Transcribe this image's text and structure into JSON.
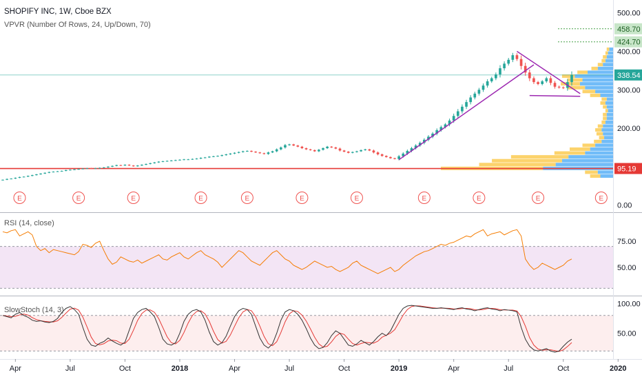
{
  "legend": {
    "main": "SHOPIFY INC, 1W, Cboe BZX",
    "vpvr": "VPVR (Number Of Rows, 24, Up/Down, 70)",
    "rsi": "RSI (14, close)",
    "stoch": "SlowStoch (14, 3)"
  },
  "colors": {
    "up": "#26a69a",
    "down": "#ef5350",
    "trendline": "#9c27b0",
    "support": "#e53935",
    "rsi_line": "#f57c00",
    "rsi_band": "#f3e5f5",
    "stoch_k": "#333333",
    "stoch_d": "#e53935",
    "vp_up": "#42a5f5",
    "vp_down": "#fbc02d"
  },
  "chart_data": [
    {
      "type": "candlestick",
      "title": "SHOPIFY INC, 1W, Cboe BZX",
      "ylim": [
        -15,
        530
      ],
      "y_ticks": [
        "500.00",
        "400.00",
        "300.00",
        "200.00",
        "0.00"
      ],
      "y_tick_values": [
        500,
        400,
        300,
        200,
        0
      ],
      "x_ticks": [
        "Apr",
        "Jul",
        "Oct",
        "2018",
        "Apr",
        "Jul",
        "Oct",
        "2019",
        "Apr",
        "Jul",
        "Oct",
        "2020"
      ],
      "x_tick_weeks": [
        3,
        16,
        29,
        42,
        55,
        68,
        81,
        94,
        107,
        120,
        133,
        146
      ],
      "weekly_close": [
        66,
        68,
        69,
        71,
        73,
        74,
        76,
        78,
        80,
        82,
        84,
        86,
        87,
        88,
        89,
        91,
        92,
        93,
        94,
        95,
        96,
        95,
        96,
        97,
        98,
        100,
        102,
        104,
        103,
        105,
        103,
        101,
        103,
        105,
        107,
        109,
        111,
        113,
        114,
        115,
        116,
        117,
        118,
        119,
        119,
        120,
        121,
        123,
        124,
        126,
        127,
        128,
        130,
        132,
        134,
        136,
        138,
        140,
        141,
        139,
        137,
        135,
        133,
        137,
        140,
        145,
        150,
        156,
        158,
        155,
        152,
        148,
        145,
        143,
        140,
        144,
        148,
        152,
        150,
        147,
        142,
        139,
        136,
        138,
        140,
        143,
        145,
        142,
        137,
        132,
        128,
        125,
        122,
        120,
        127,
        134,
        141,
        148,
        155,
        162,
        170,
        178,
        186,
        195,
        203,
        210,
        220,
        232,
        244,
        256,
        268,
        280,
        290,
        300,
        311,
        322,
        330,
        340,
        356,
        368,
        378,
        390,
        380,
        362,
        345,
        330,
        320,
        315,
        322,
        330,
        318,
        308,
        306,
        305,
        320,
        338.54
      ],
      "annotations": {
        "last_price": "338.54",
        "price_labels": [
          "458.70",
          "424.70",
          "95.19"
        ],
        "price_label_values": [
          458.7,
          424.7,
          95.19
        ],
        "support_line": 95.19,
        "earnings_marker": "E",
        "earnings_weeks": [
          4,
          18,
          31,
          47,
          58,
          71,
          84,
          100,
          113,
          127,
          142,
          155
        ]
      },
      "volume_profile": {
        "price_levels": [
          75,
          85,
          95,
          105,
          115,
          125,
          135,
          145,
          155,
          165,
          175,
          185,
          195,
          205,
          215,
          225,
          235,
          245,
          255,
          265,
          275,
          285,
          295,
          305,
          315,
          325,
          335,
          345,
          355,
          365,
          375,
          385,
          395,
          405
        ],
        "up_volume": [
          10,
          12,
          55,
          45,
          40,
          35,
          22,
          18,
          14,
          9,
          7,
          8,
          9,
          8,
          6,
          5,
          5,
          4,
          5,
          6,
          5,
          10,
          14,
          22,
          26,
          24,
          30,
          20,
          12,
          8,
          6,
          5,
          4,
          3
        ],
        "down_volume": [
          8,
          10,
          80,
          60,
          55,
          45,
          24,
          16,
          10,
          6,
          4,
          5,
          5,
          4,
          3,
          3,
          3,
          2,
          3,
          4,
          4,
          8,
          10,
          14,
          15,
          12,
          10,
          8,
          5,
          4,
          3,
          3,
          2,
          2
        ]
      }
    },
    {
      "type": "line",
      "title": "RSI (14, close)",
      "ylim": [
        25,
        100
      ],
      "y_ticks": [
        "75.00",
        "50.00"
      ],
      "y_tick_values": [
        75,
        50
      ],
      "band": [
        30,
        70
      ],
      "series": [
        {
          "name": "RSI (14, close)",
          "values": [
            84,
            83,
            85,
            86,
            80,
            82,
            84,
            81,
            70,
            66,
            68,
            64,
            67,
            66,
            65,
            64,
            63,
            62,
            65,
            72,
            71,
            69,
            73,
            75,
            66,
            58,
            53,
            55,
            60,
            58,
            56,
            55,
            57,
            54,
            56,
            58,
            60,
            62,
            58,
            57,
            60,
            62,
            64,
            60,
            58,
            61,
            64,
            66,
            62,
            60,
            58,
            55,
            50,
            54,
            58,
            62,
            66,
            64,
            60,
            56,
            54,
            52,
            56,
            60,
            64,
            66,
            62,
            58,
            56,
            52,
            50,
            48,
            50,
            53,
            56,
            54,
            52,
            50,
            51,
            48,
            46,
            48,
            50,
            54,
            56,
            52,
            50,
            48,
            46,
            44,
            46,
            48,
            50,
            46,
            48,
            52,
            55,
            58,
            61,
            63,
            65,
            66,
            68,
            70,
            72,
            71,
            73,
            74,
            76,
            78,
            80,
            79,
            82,
            84,
            86,
            80,
            82,
            83,
            84,
            81,
            83,
            85,
            86,
            80,
            58,
            52,
            48,
            50,
            54,
            52,
            50,
            48,
            50,
            52,
            56,
            58
          ]
        }
      ]
    },
    {
      "type": "line",
      "title": "SlowStoch (14, 3)",
      "ylim": [
        10,
        110
      ],
      "y_ticks": [
        "100.00",
        "50.00"
      ],
      "y_tick_values": [
        100,
        50
      ],
      "band": [
        20,
        80
      ],
      "series": [
        {
          "name": "%K",
          "values": [
            80,
            78,
            76,
            82,
            85,
            80,
            77,
            72,
            70,
            71,
            69,
            68,
            70,
            75,
            85,
            92,
            95,
            90,
            82,
            60,
            40,
            30,
            28,
            33,
            36,
            42,
            37,
            33,
            30,
            35,
            55,
            75,
            85,
            90,
            92,
            86,
            78,
            60,
            40,
            32,
            30,
            34,
            50,
            70,
            82,
            88,
            90,
            86,
            72,
            52,
            36,
            30,
            34,
            45,
            62,
            78,
            88,
            92,
            90,
            82,
            62,
            42,
            30,
            25,
            32,
            50,
            72,
            86,
            90,
            88,
            82,
            72,
            58,
            42,
            30,
            24,
            26,
            34,
            46,
            54,
            50,
            40,
            30,
            28,
            32,
            38,
            34,
            30,
            36,
            44,
            50,
            46,
            54,
            68,
            82,
            92,
            96,
            97,
            96,
            95,
            94,
            93,
            92,
            92,
            93,
            92,
            91,
            90,
            92,
            93,
            91,
            90,
            88,
            90,
            92,
            93,
            91,
            90,
            88,
            90,
            89,
            88,
            86,
            60,
            40,
            28,
            22,
            20,
            22,
            24,
            20,
            18,
            20,
            28,
            35,
            40
          ]
        }
      ]
    }
  ]
}
